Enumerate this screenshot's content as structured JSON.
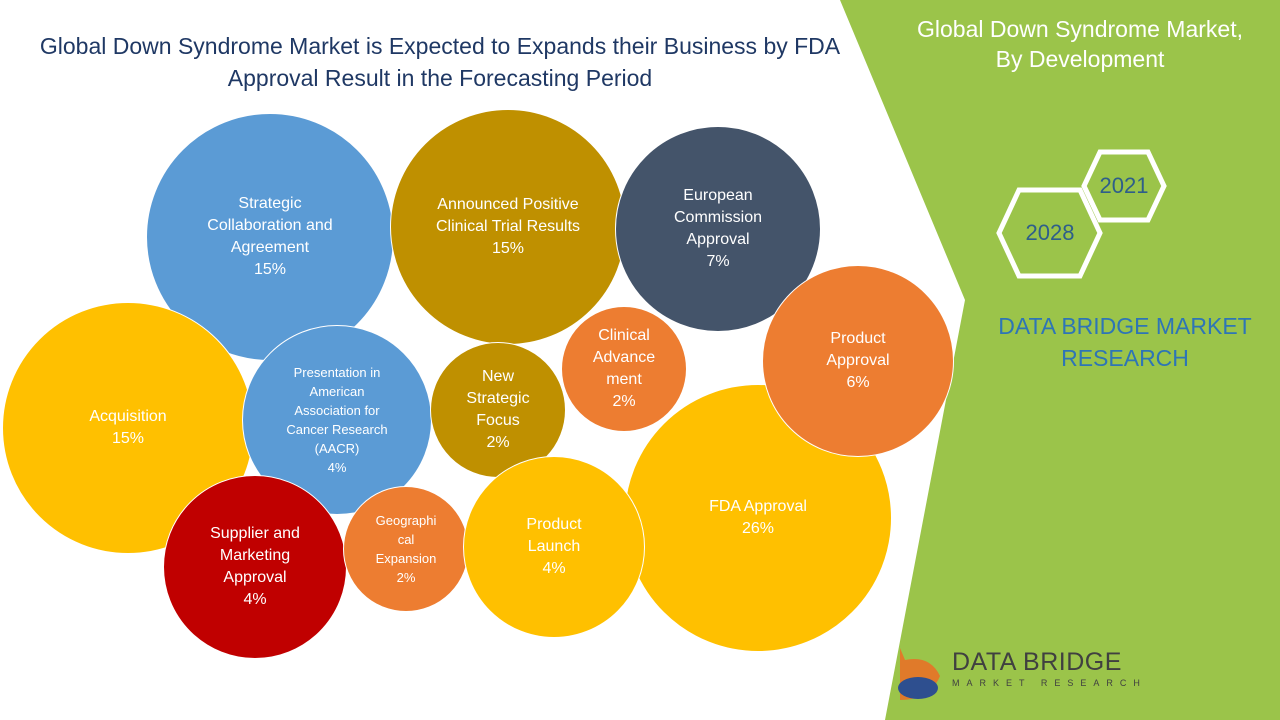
{
  "chart_data": {
    "type": "bubble",
    "title": "Global Down Syndrome Market is Expected to Expands their Business by FDA\nApproval Result in the Forecasting Period",
    "categories": [
      "Strategic\nCollaboration and\nAgreement",
      "Announced Positive\nClinical Trial Results",
      "European\nCommission\nApproval",
      "Acquisition",
      "FDA Approval",
      "Product\nApproval",
      "Presentation in\nAmerican\nAssociation for\nCancer Research\n(AACR)",
      "New\nStrategic\nFocus",
      "Clinical\nAdvance\nment",
      "Supplier and\nMarketing\nApproval",
      "Geographi\ncal\nExpansion",
      "Product\nLaunch"
    ],
    "values": [
      15,
      15,
      7,
      15,
      26,
      6,
      4,
      2,
      2,
      4,
      2,
      4
    ],
    "value_labels": [
      "15%",
      "15%",
      "7%",
      "15%",
      "26%",
      "6%",
      "4%",
      "2%",
      "2%",
      "4%",
      "2%",
      "4%"
    ],
    "colors": [
      "#5b9bd5",
      "#bf9000",
      "#44546a",
      "#ffc000",
      "#ffc000",
      "#ed7d31",
      "#5b9bd5",
      "#bf9000",
      "#ed7d31",
      "#c00000",
      "#ed7d31",
      "#ffc000"
    ]
  },
  "sidebar": {
    "title": "Global Down Syndrome Market,\nBy Development",
    "year_start": "2021",
    "year_end": "2028",
    "brand": "DATA BRIDGE MARKET\nRESEARCH",
    "logo_name": "DATA BRIDGE",
    "logo_tagline": "MARKET RESEARCH"
  }
}
